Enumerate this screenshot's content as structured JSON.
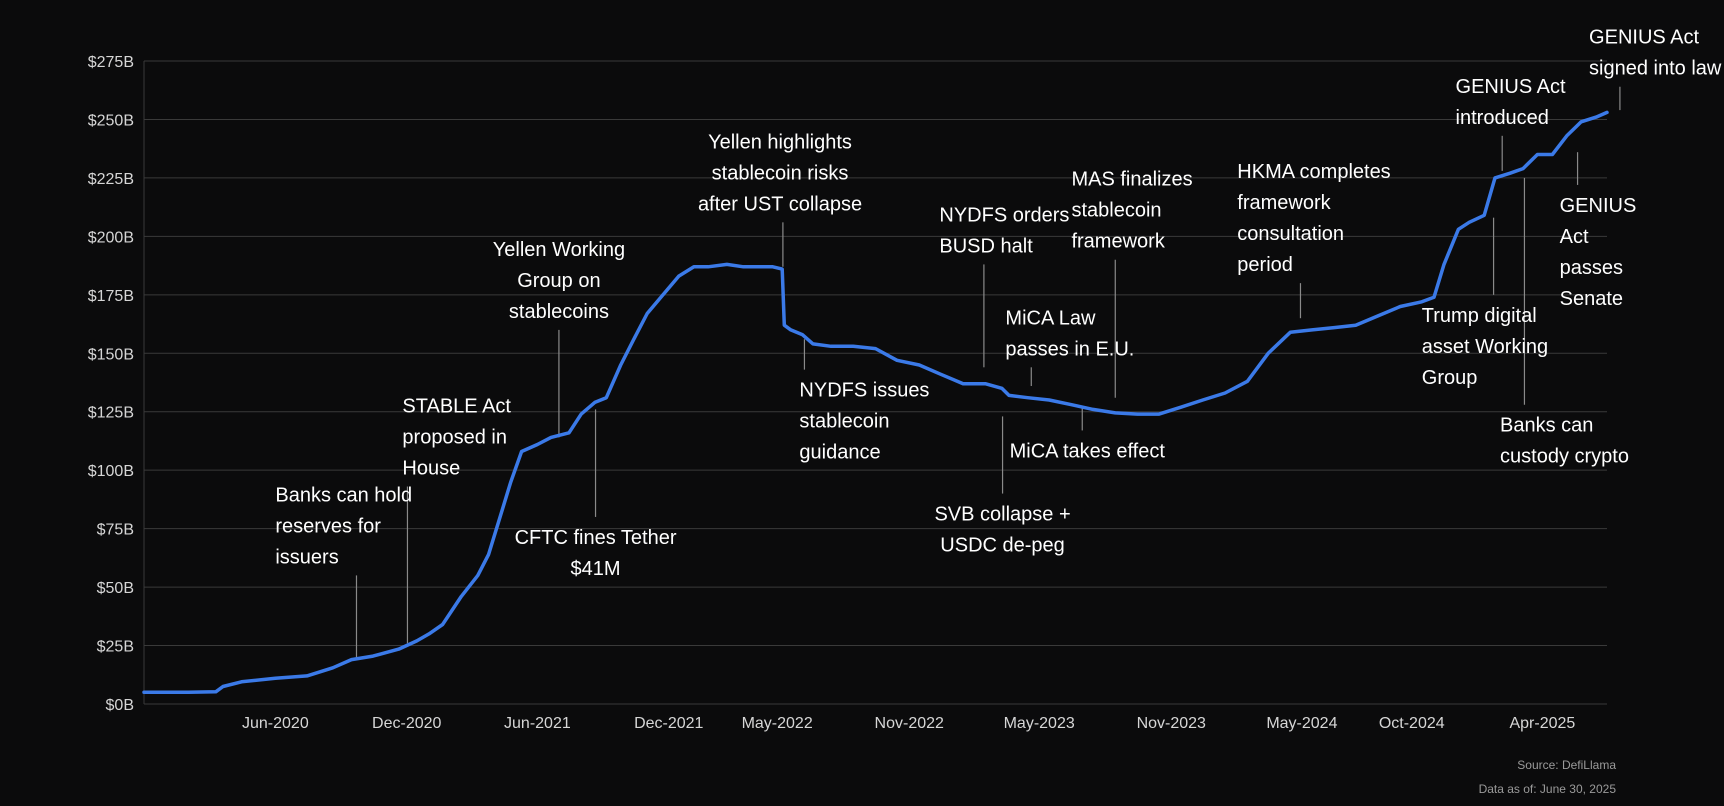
{
  "colors": {
    "background": "#0b0b0c",
    "line": "#3b7ae8",
    "grid": "#3a3a3a",
    "text": "#ffffff",
    "tick_text": "#d6d6d6",
    "footer_text": "#9a9a9a",
    "leader": "#8a8a8a"
  },
  "chart_data": {
    "type": "line",
    "title": "",
    "xlabel": "",
    "ylabel": "",
    "ylim": [
      0,
      275
    ],
    "xlim": [
      "2019-12-01",
      "2025-06-30"
    ],
    "grid": true,
    "y_ticks": [
      {
        "value": 0,
        "label": "$0B"
      },
      {
        "value": 25,
        "label": "$25B"
      },
      {
        "value": 50,
        "label": "$50B"
      },
      {
        "value": 75,
        "label": "$75B"
      },
      {
        "value": 100,
        "label": "$100B"
      },
      {
        "value": 125,
        "label": "$125B"
      },
      {
        "value": 150,
        "label": "$150B"
      },
      {
        "value": 175,
        "label": "$175B"
      },
      {
        "value": 200,
        "label": "$200B"
      },
      {
        "value": 225,
        "label": "$225B"
      },
      {
        "value": 250,
        "label": "$250B"
      },
      {
        "value": 275,
        "label": "$275B"
      }
    ],
    "x_ticks": [
      {
        "date": "2020-06-01",
        "label": "Jun-2020"
      },
      {
        "date": "2020-12-01",
        "label": "Dec-2020"
      },
      {
        "date": "2021-06-01",
        "label": "Jun-2021"
      },
      {
        "date": "2021-12-01",
        "label": "Dec-2021"
      },
      {
        "date": "2022-05-01",
        "label": "May-2022"
      },
      {
        "date": "2022-11-01",
        "label": "Nov-2022"
      },
      {
        "date": "2023-05-01",
        "label": "May-2023"
      },
      {
        "date": "2023-11-01",
        "label": "Nov-2023"
      },
      {
        "date": "2024-05-01",
        "label": "May-2024"
      },
      {
        "date": "2024-10-01",
        "label": "Oct-2024"
      },
      {
        "date": "2025-04-01",
        "label": "Apr-2025"
      }
    ],
    "series": [
      {
        "points": [
          [
            "2019-12-01",
            5
          ],
          [
            "2020-02-01",
            5
          ],
          [
            "2020-03-10",
            5.2
          ],
          [
            "2020-03-20",
            7.5
          ],
          [
            "2020-04-15",
            9.5
          ],
          [
            "2020-06-01",
            11
          ],
          [
            "2020-07-15",
            12
          ],
          [
            "2020-08-20",
            15.5
          ],
          [
            "2020-09-15",
            19
          ],
          [
            "2020-10-15",
            20.5
          ],
          [
            "2020-11-20",
            23.5
          ],
          [
            "2020-12-15",
            27
          ],
          [
            "2021-01-01",
            30
          ],
          [
            "2021-01-20",
            34
          ],
          [
            "2021-02-15",
            46
          ],
          [
            "2021-03-10",
            55
          ],
          [
            "2021-03-25",
            64
          ],
          [
            "2021-04-10",
            80
          ],
          [
            "2021-04-25",
            95
          ],
          [
            "2021-05-10",
            108
          ],
          [
            "2021-06-01",
            111
          ],
          [
            "2021-06-20",
            114
          ],
          [
            "2021-07-15",
            116
          ],
          [
            "2021-08-01",
            124
          ],
          [
            "2021-08-20",
            129
          ],
          [
            "2021-09-05",
            131
          ],
          [
            "2021-09-25",
            145
          ],
          [
            "2021-10-15",
            157
          ],
          [
            "2021-11-01",
            167
          ],
          [
            "2021-11-20",
            174
          ],
          [
            "2021-12-15",
            183
          ],
          [
            "2022-01-05",
            187
          ],
          [
            "2022-01-25",
            187
          ],
          [
            "2022-02-20",
            188
          ],
          [
            "2022-03-15",
            187
          ],
          [
            "2022-04-05",
            187
          ],
          [
            "2022-04-25",
            187
          ],
          [
            "2022-05-08",
            186
          ],
          [
            "2022-05-11",
            162
          ],
          [
            "2022-05-20",
            160
          ],
          [
            "2022-06-05",
            158
          ],
          [
            "2022-06-20",
            154
          ],
          [
            "2022-07-15",
            153
          ],
          [
            "2022-08-15",
            153
          ],
          [
            "2022-09-15",
            152
          ],
          [
            "2022-10-15",
            147
          ],
          [
            "2022-11-15",
            145
          ],
          [
            "2022-12-15",
            141
          ],
          [
            "2023-01-15",
            137
          ],
          [
            "2023-02-15",
            137
          ],
          [
            "2023-03-10",
            135
          ],
          [
            "2023-03-20",
            132
          ],
          [
            "2023-04-15",
            131
          ],
          [
            "2023-05-15",
            130
          ],
          [
            "2023-06-15",
            128
          ],
          [
            "2023-07-15",
            126
          ],
          [
            "2023-08-15",
            124.5
          ],
          [
            "2023-09-15",
            124
          ],
          [
            "2023-10-15",
            124
          ],
          [
            "2023-11-15",
            127
          ],
          [
            "2023-12-15",
            130
          ],
          [
            "2024-01-15",
            133
          ],
          [
            "2024-02-15",
            138
          ],
          [
            "2024-03-15",
            150
          ],
          [
            "2024-04-15",
            159
          ],
          [
            "2024-05-15",
            160
          ],
          [
            "2024-06-15",
            161
          ],
          [
            "2024-07-15",
            162
          ],
          [
            "2024-08-15",
            166
          ],
          [
            "2024-09-15",
            170
          ],
          [
            "2024-10-15",
            172
          ],
          [
            "2024-11-01",
            174
          ],
          [
            "2024-11-15",
            188
          ],
          [
            "2024-12-05",
            203
          ],
          [
            "2024-12-20",
            206
          ],
          [
            "2025-01-10",
            209
          ],
          [
            "2025-01-25",
            225
          ],
          [
            "2025-02-15",
            227
          ],
          [
            "2025-03-05",
            229
          ],
          [
            "2025-03-25",
            235
          ],
          [
            "2025-04-15",
            235
          ],
          [
            "2025-05-05",
            243
          ],
          [
            "2025-05-25",
            249
          ],
          [
            "2025-06-15",
            251
          ],
          [
            "2025-06-30",
            253
          ]
        ]
      }
    ],
    "annotations": [
      {
        "text": [
          "Banks can hold",
          "reserves for",
          "issuers"
        ],
        "date": "2020-09-22",
        "value": 20,
        "leader_to": 55,
        "label_date": "2020-06-01",
        "anchor": "start"
      },
      {
        "text": [
          "STABLE Act",
          "proposed in",
          "House"
        ],
        "date": "2020-12-02",
        "value": 26,
        "leader_to": 93,
        "label_date": "2020-11-25",
        "anchor": "start"
      },
      {
        "text": [
          "Yellen Working",
          "Group on",
          "stablecoins"
        ],
        "date": "2021-07-01",
        "value": 114,
        "leader_to": 160,
        "label_date": "2021-07-01",
        "anchor": "middle"
      },
      {
        "text": [
          "CFTC fines Tether",
          "$41M"
        ],
        "date": "2021-08-21",
        "value": 126,
        "leader_to": 80,
        "label_date": "2021-08-21",
        "anchor": "middle"
      },
      {
        "text": [
          "Yellen highlights",
          "stablecoin risks",
          "after UST collapse"
        ],
        "date": "2022-05-09",
        "value": 187,
        "leader_to": 206,
        "label_date": "2022-05-05",
        "anchor": "middle"
      },
      {
        "text": [
          "NYDFS issues",
          "stablecoin",
          "guidance"
        ],
        "date": "2022-06-08",
        "value": 156,
        "leader_to": 143,
        "label_date": "2022-06-01",
        "anchor": "start"
      },
      {
        "text": [
          "NYDFS orders",
          "BUSD halt"
        ],
        "date": "2023-02-13",
        "value": 144,
        "leader_to": 188,
        "label_date": "2022-12-13",
        "anchor": "start"
      },
      {
        "text": [
          "MiCA Law",
          "passes in E.U."
        ],
        "date": "2023-04-20",
        "value": 136,
        "leader_to": 144,
        "label_date": "2023-03-15",
        "anchor": "start"
      },
      {
        "text": [
          "SVB collapse +",
          "USDC de-peg"
        ],
        "date": "2023-03-11",
        "value": 123,
        "leader_to": 90,
        "label_date": "2023-03-11",
        "anchor": "middle"
      },
      {
        "text": [
          "MiCA takes effect"
        ],
        "date": "2023-06-30",
        "value": 127,
        "leader_to": 117,
        "label_date": "2023-07-07",
        "anchor": "middle"
      },
      {
        "text": [
          "MAS finalizes",
          "stablecoin",
          "framework"
        ],
        "date": "2023-08-15",
        "value": 131,
        "leader_to": 190,
        "label_date": "2023-06-15",
        "anchor": "start"
      },
      {
        "text": [
          "HKMA completes",
          "framework",
          "consultation",
          "period"
        ],
        "date": "2024-04-29",
        "value": 165,
        "leader_to": 180,
        "label_date": "2024-02-01",
        "anchor": "start"
      },
      {
        "text": [
          "Trump digital",
          "asset Working",
          "Group"
        ],
        "date": "2025-01-23",
        "value": 208,
        "leader_to": 175,
        "label_date": "2024-10-15",
        "anchor": "start"
      },
      {
        "text": [
          "GENIUS Act",
          "introduced"
        ],
        "date": "2025-02-04",
        "value": 228,
        "leader_to": 243,
        "label_date": "2024-12-01",
        "anchor": "start"
      },
      {
        "text": [
          "Banks can",
          "custody crypto"
        ],
        "date": "2025-03-07",
        "value": 225,
        "leader_to": 128,
        "label_date": "2025-02-01",
        "anchor": "start"
      },
      {
        "text": [
          "GENIUS",
          "Act",
          "passes",
          "Senate"
        ],
        "date": "2025-05-20",
        "value": 236,
        "leader_to": 222,
        "label_date": "2025-04-25",
        "anchor": "start"
      },
      {
        "text": [
          "GENIUS Act",
          "signed into law"
        ],
        "date": "2025-07-18",
        "value": 254,
        "leader_to": 264,
        "label_date": "2025-06-05",
        "anchor": "start"
      }
    ]
  },
  "footer": {
    "source": "Source: DefiLlama",
    "asof": "Data as of: June 30, 2025"
  }
}
